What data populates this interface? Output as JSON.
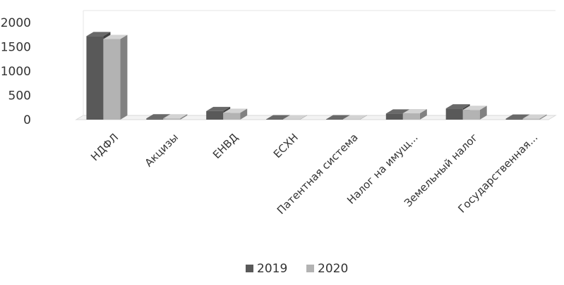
{
  "chart_data": {
    "type": "bar",
    "style": "3d-clustered-column",
    "categories": [
      "НДФЛ",
      "Акцизы",
      "ЕНВД",
      "ЕСХН",
      "Патентная система",
      "Налог на имущ...",
      "Земельный налог",
      "Государственная..."
    ],
    "series": [
      {
        "name": "2019",
        "color": "#595959",
        "values": [
          1720,
          25,
          175,
          8,
          8,
          125,
          230,
          20
        ]
      },
      {
        "name": "2020",
        "color": "#b3b3b3",
        "values": [
          1660,
          25,
          140,
          8,
          8,
          130,
          200,
          20
        ]
      }
    ],
    "ylim": [
      0,
      2000
    ],
    "yticks": [
      "0",
      "500",
      "1000",
      "1500",
      "2000"
    ],
    "grid": false,
    "legend": "bottom"
  }
}
